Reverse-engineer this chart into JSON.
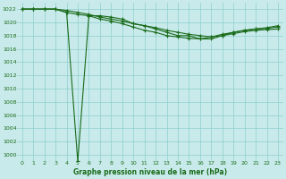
{
  "title": "Graphe pression niveau de la mer (hPa)",
  "background_color": "#c8eaea",
  "grid_color": "#8ecece",
  "line_color": "#1a6b1a",
  "marker": "+",
  "xlim": [
    -0.5,
    23.5
  ],
  "ylim": [
    999,
    1023
  ],
  "ytick_min": 1000,
  "ytick_max": 1022,
  "ytick_step": 2,
  "xticks": [
    0,
    1,
    2,
    3,
    4,
    5,
    6,
    7,
    8,
    9,
    10,
    11,
    12,
    13,
    14,
    15,
    16,
    17,
    18,
    19,
    20,
    21,
    22,
    23
  ],
  "series": [
    [
      1022.0,
      1022.0,
      1022.0,
      1022.0,
      1021.5,
      999.0,
      1021.0,
      1021.0,
      1020.8,
      1020.5,
      1019.8,
      1019.5,
      1019.0,
      1018.5,
      1018.0,
      1018.0,
      1017.5,
      1017.5,
      1018.0,
      1018.5,
      1018.8,
      1019.0,
      1019.2,
      1019.5
    ],
    [
      1022.0,
      1022.0,
      1022.0,
      1022.0,
      1021.8,
      1021.5,
      1021.2,
      1020.8,
      1020.5,
      1020.2,
      1019.8,
      1019.5,
      1019.2,
      1018.8,
      1018.5,
      1018.2,
      1018.0,
      1017.8,
      1018.0,
      1018.3,
      1018.6,
      1018.8,
      1018.9,
      1019.0
    ],
    [
      1022.0,
      1022.0,
      1022.0,
      1022.0,
      1021.5,
      1021.2,
      1021.0,
      1020.5,
      1020.2,
      1019.8,
      1019.3,
      1018.8,
      1018.5,
      1018.0,
      1017.8,
      1017.6,
      1017.5,
      1017.8,
      1018.2,
      1018.5,
      1018.8,
      1019.0,
      1019.1,
      1019.3
    ]
  ]
}
